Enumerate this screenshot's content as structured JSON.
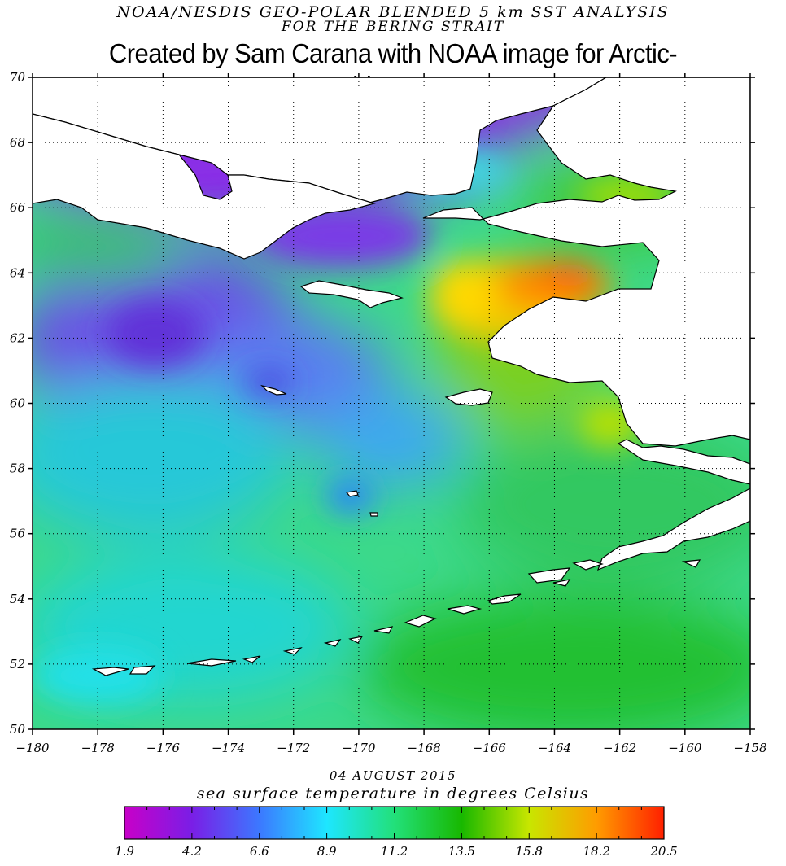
{
  "title_line1": "NOAA/NESDIS GEO-POLAR BLENDED 5 km SST ANALYSIS",
  "title_line2": "FOR THE BERING STRAIT",
  "credit": "Created by Sam Carana with NOAA image for Arctic-news.blogspot.com",
  "date": "04 AUGUST 2015",
  "colorbar_title": "sea surface temperature in degrees Celsius",
  "map": {
    "lon_range": [
      -180,
      -158
    ],
    "lat_range": [
      50,
      70
    ],
    "lon_ticks": [
      "-180",
      "-178",
      "-176",
      "-174",
      "-172",
      "-170",
      "-168",
      "-166",
      "-164",
      "-162",
      "-160",
      "-158"
    ],
    "lat_ticks": [
      "70",
      "68",
      "66",
      "64",
      "62",
      "60",
      "58",
      "56",
      "54",
      "52",
      "50"
    ],
    "grid": true,
    "gridline_style": "dotted"
  },
  "colorbar": {
    "tick_labels": [
      "1.9",
      "4.2",
      "6.6",
      "8.9",
      "11.2",
      "13.5",
      "15.8",
      "18.2",
      "20.5"
    ],
    "range": [
      1.9,
      20.5
    ],
    "colors": [
      "#c800c8",
      "#7a1ee6",
      "#3c78ff",
      "#1ee6ff",
      "#22e07a",
      "#18b800",
      "#c8e600",
      "#ff9c00",
      "#ff2000"
    ]
  },
  "colors": {
    "land": "#ffffff",
    "coastline": "#000000",
    "cold_sst": "#7a2ee0",
    "mid_sst": "#1ee6c8",
    "warm_sst": "#ff8a00"
  }
}
